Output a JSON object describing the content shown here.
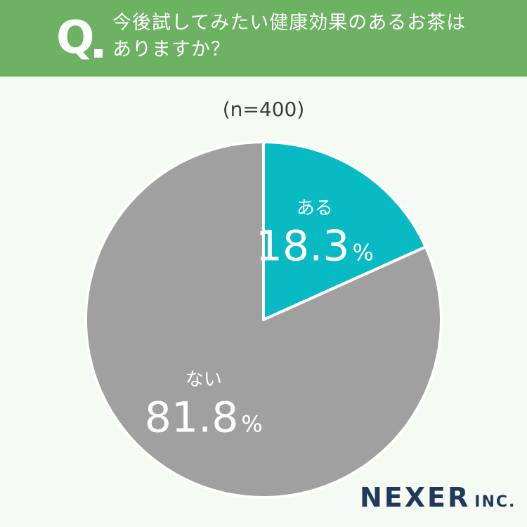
{
  "header": {
    "q_mark": "Q",
    "question_line1": "今後試してみたい健康効果のあるお茶は",
    "question_line2": "ありますか？"
  },
  "sample_size": "(n=400)",
  "brand": {
    "name": "NEXER",
    "suffix": "INC."
  },
  "colors": {
    "header_bg": "#6cb262",
    "yes": "#08bac4",
    "no": "#a0a0a0"
  },
  "chart_data": {
    "type": "pie",
    "title": "今後試してみたい健康効果のあるお茶はありますか？",
    "n": 400,
    "slices": [
      {
        "label": "ある",
        "value": 18.3,
        "unit": "%",
        "color": "#08bac4"
      },
      {
        "label": "ない",
        "value": 81.8,
        "unit": "%",
        "color": "#a0a0a0"
      }
    ]
  }
}
